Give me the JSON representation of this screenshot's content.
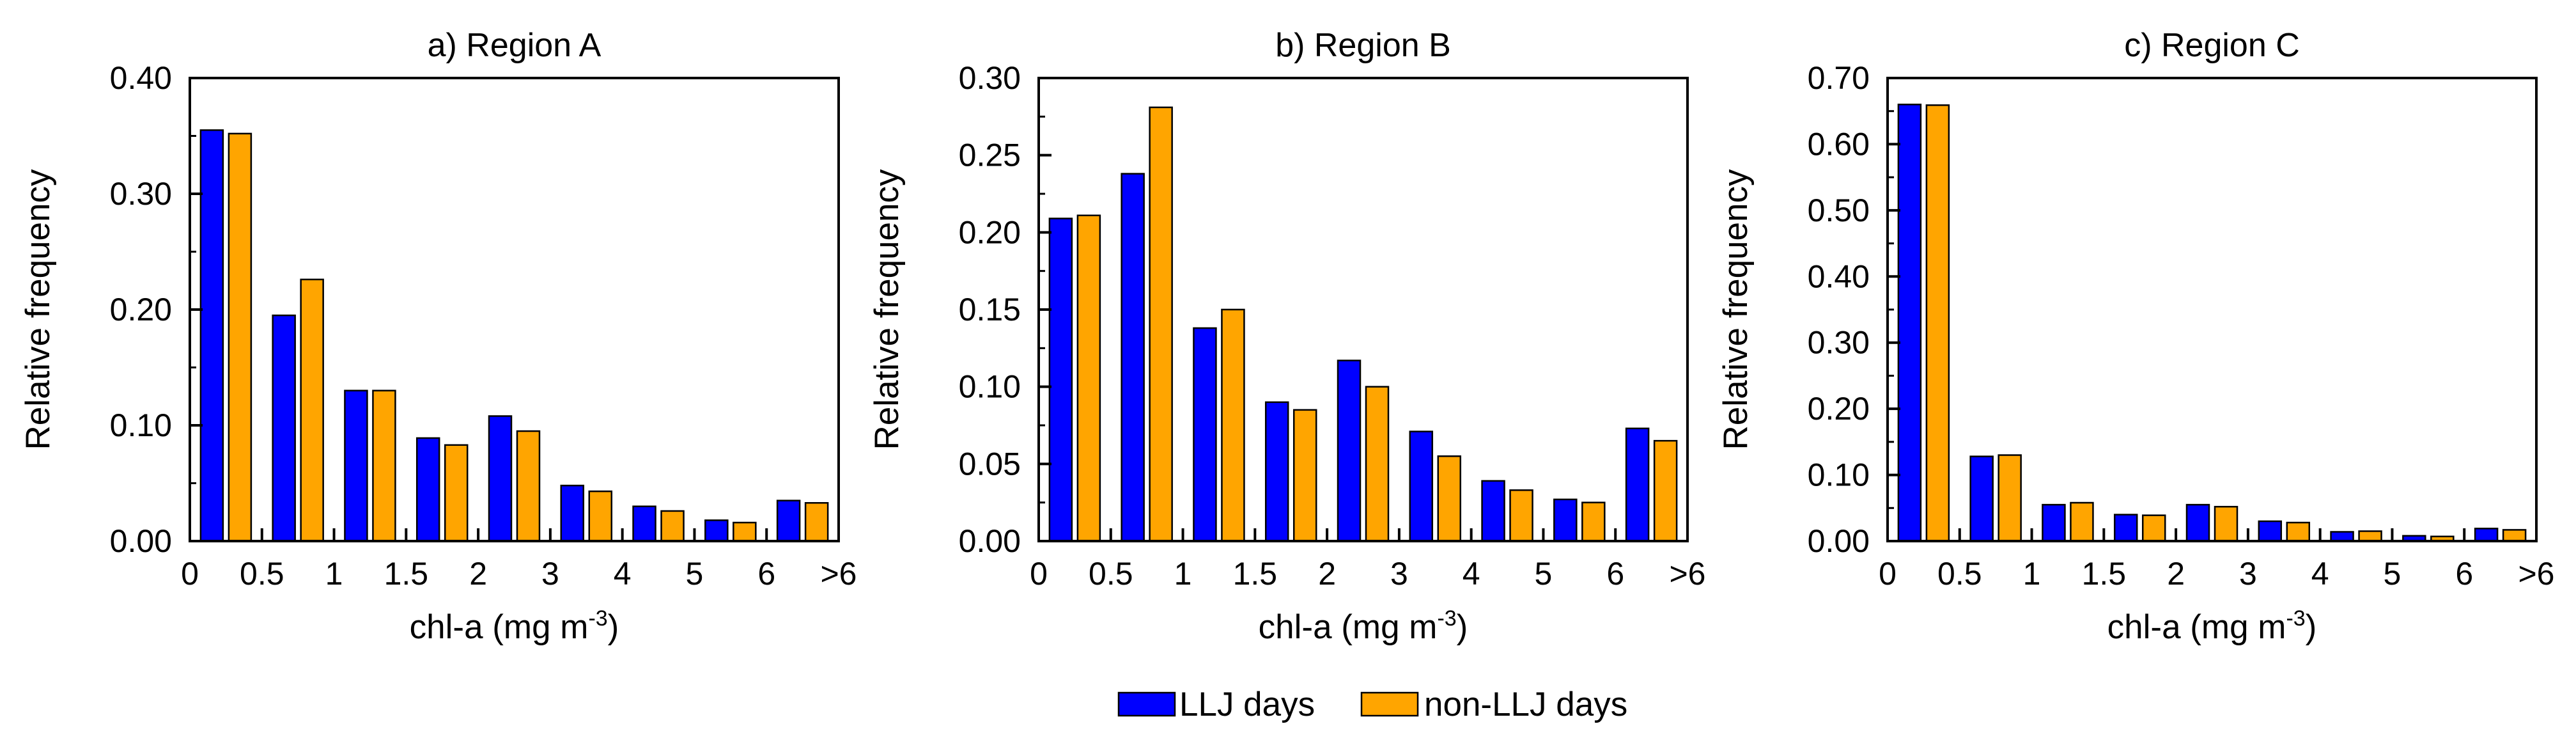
{
  "colors": {
    "llj": "#0000ff",
    "non_llj": "#ffa500",
    "axis": "#000000"
  },
  "legend": [
    {
      "key": "llj",
      "label": "LLJ days"
    },
    {
      "key": "non_llj",
      "label": "non-LLJ days"
    }
  ],
  "chart_data": [
    {
      "type": "bar",
      "title": "a) Region A",
      "xlabel": "chl-a (mg m",
      "xlabel_sup": "-3",
      "xlabel_close": ")",
      "ylabel": "Relative frequency",
      "ylim": [
        0,
        0.4
      ],
      "yticks": [
        "0.00",
        "0.10",
        "0.20",
        "0.30",
        "0.40"
      ],
      "xticks": [
        "0",
        "0.5",
        "1",
        "1.5",
        "2",
        "3",
        "4",
        "5",
        "6",
        ">6"
      ],
      "categories": [
        "0-0.5",
        "0.5-1",
        "1-1.5",
        "1.5-2",
        "2-3",
        "3-4",
        "4-5",
        "5-6",
        ">6"
      ],
      "series": [
        {
          "name": "LLJ days",
          "key": "llj",
          "values": [
            0.355,
            0.195,
            0.13,
            0.089,
            0.108,
            0.048,
            0.03,
            0.018,
            0.035
          ]
        },
        {
          "name": "non-LLJ days",
          "key": "non_llj",
          "values": [
            0.352,
            0.226,
            0.13,
            0.083,
            0.095,
            0.043,
            0.026,
            0.016,
            0.033
          ]
        }
      ]
    },
    {
      "type": "bar",
      "title": "b) Region B",
      "xlabel": "chl-a (mg m",
      "xlabel_sup": "-3",
      "xlabel_close": ")",
      "ylabel": "Relative frequency",
      "ylim": [
        0,
        0.3
      ],
      "yticks": [
        "0.00",
        "0.05",
        "0.10",
        "0.15",
        "0.20",
        "0.25",
        "0.30"
      ],
      "xticks": [
        "0",
        "0.5",
        "1",
        "1.5",
        "2",
        "3",
        "4",
        "5",
        "6",
        ">6"
      ],
      "categories": [
        "0-0.5",
        "0.5-1",
        "1-1.5",
        "1.5-2",
        "2-3",
        "3-4",
        "4-5",
        "5-6",
        ">6"
      ],
      "series": [
        {
          "name": "LLJ days",
          "key": "llj",
          "values": [
            0.209,
            0.238,
            0.138,
            0.09,
            0.117,
            0.071,
            0.039,
            0.027,
            0.073
          ]
        },
        {
          "name": "non-LLJ days",
          "key": "non_llj",
          "values": [
            0.211,
            0.281,
            0.15,
            0.085,
            0.1,
            0.055,
            0.033,
            0.025,
            0.065
          ]
        }
      ]
    },
    {
      "type": "bar",
      "title": "c) Region C",
      "xlabel": "chl-a (mg m",
      "xlabel_sup": "-3",
      "xlabel_close": ")",
      "ylabel": "Relative frequency",
      "ylim": [
        0,
        0.7
      ],
      "yticks": [
        "0.00",
        "0.10",
        "0.20",
        "0.30",
        "0.40",
        "0.50",
        "0.60",
        "0.70"
      ],
      "xticks": [
        "0",
        "0.5",
        "1",
        "1.5",
        "2",
        "3",
        "4",
        "5",
        "6",
        ">6"
      ],
      "categories": [
        "0-0.5",
        "0.5-1",
        "1-1.5",
        "1.5-2",
        "2-3",
        "3-4",
        "4-5",
        "5-6",
        ">6"
      ],
      "series": [
        {
          "name": "LLJ days",
          "key": "llj",
          "values": [
            0.66,
            0.128,
            0.055,
            0.04,
            0.055,
            0.03,
            0.014,
            0.008,
            0.019
          ]
        },
        {
          "name": "non-LLJ days",
          "key": "non_llj",
          "values": [
            0.659,
            0.13,
            0.058,
            0.039,
            0.052,
            0.028,
            0.015,
            0.007,
            0.017
          ]
        }
      ]
    }
  ]
}
